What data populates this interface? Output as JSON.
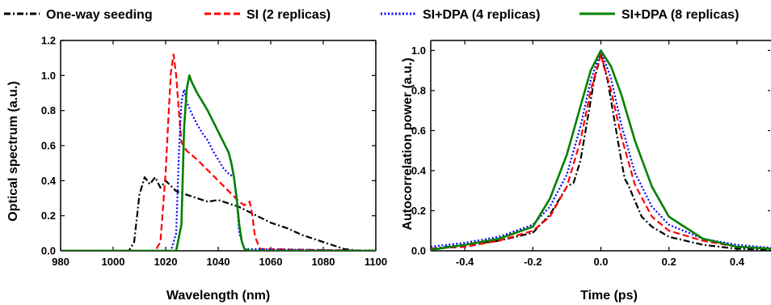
{
  "legend": [
    {
      "label": "One-way seeding",
      "color": "#000000",
      "dash": "dashdot"
    },
    {
      "label": "SI (2 replicas)",
      "color": "#ff0000",
      "dash": "dash"
    },
    {
      "label": "SI+DPA (4 replicas)",
      "color": "#0000ff",
      "dash": "dot"
    },
    {
      "label": "SI+DPA (8 replicas)",
      "color": "#008000",
      "dash": "solid"
    }
  ],
  "chart_data": [
    {
      "type": "line",
      "xlabel": "Wavelength (nm)",
      "ylabel": "Optical spectrum (a.u.)",
      "xlim": [
        980,
        1100
      ],
      "ylim": [
        0,
        1.2
      ],
      "xticks": [
        "980",
        "1000",
        "1020",
        "1040",
        "1060",
        "1080",
        "1100"
      ],
      "yticks": [
        "0.0",
        "0.2",
        "0.4",
        "0.6",
        "0.8",
        "1.0",
        "1.2"
      ],
      "series": [
        {
          "name": "One-way seeding",
          "color": "#000000",
          "dash": "dashdot",
          "x": [
            980,
            1006,
            1008,
            1010,
            1012,
            1014,
            1016,
            1018,
            1020,
            1024,
            1028,
            1032,
            1036,
            1040,
            1044,
            1048,
            1052,
            1056,
            1060,
            1066,
            1072,
            1078,
            1084,
            1088,
            1092,
            1100
          ],
          "y": [
            0,
            0,
            0.05,
            0.32,
            0.42,
            0.38,
            0.42,
            0.36,
            0.4,
            0.34,
            0.32,
            0.3,
            0.28,
            0.29,
            0.27,
            0.25,
            0.22,
            0.19,
            0.16,
            0.13,
            0.09,
            0.06,
            0.03,
            0.01,
            0.003,
            0
          ]
        },
        {
          "name": "SI (2 replicas)",
          "color": "#ff0000",
          "dash": "dash",
          "x": [
            980,
            1016,
            1018,
            1020,
            1021,
            1022,
            1023,
            1024,
            1025,
            1026,
            1028,
            1032,
            1036,
            1040,
            1044,
            1048,
            1050,
            1052,
            1053,
            1054,
            1056,
            1100
          ],
          "y": [
            0,
            0,
            0.05,
            0.45,
            0.75,
            1.02,
            1.12,
            1.0,
            0.8,
            0.62,
            0.57,
            0.52,
            0.46,
            0.4,
            0.34,
            0.28,
            0.26,
            0.28,
            0.2,
            0.08,
            0.01,
            0
          ]
        },
        {
          "name": "SI+DPA (4 replicas)",
          "color": "#0000ff",
          "dash": "dot",
          "x": [
            980,
            1022,
            1024,
            1025,
            1026,
            1027,
            1028,
            1030,
            1032,
            1034,
            1036,
            1038,
            1040,
            1042,
            1044,
            1046,
            1047,
            1048,
            1050,
            1100
          ],
          "y": [
            0,
            0,
            0.1,
            0.55,
            0.85,
            0.92,
            0.85,
            0.78,
            0.72,
            0.67,
            0.63,
            0.57,
            0.52,
            0.47,
            0.44,
            0.42,
            0.3,
            0.1,
            0.01,
            0
          ]
        },
        {
          "name": "SI+DPA (8 replicas)",
          "color": "#008000",
          "dash": "solid",
          "x": [
            980,
            1024,
            1026,
            1027,
            1028,
            1029,
            1030,
            1032,
            1034,
            1036,
            1038,
            1040,
            1042,
            1044,
            1045,
            1046,
            1047,
            1048,
            1049,
            1050,
            1052,
            1100
          ],
          "y": [
            0,
            0,
            0.15,
            0.7,
            0.92,
            1.0,
            0.96,
            0.9,
            0.85,
            0.8,
            0.74,
            0.68,
            0.62,
            0.56,
            0.5,
            0.42,
            0.3,
            0.15,
            0.05,
            0.01,
            0,
            0
          ]
        }
      ]
    },
    {
      "type": "line",
      "xlabel": "Time (ps)",
      "ylabel": "Autocorrelation power (a.u.)",
      "xlim": [
        -0.5,
        0.5
      ],
      "ylim": [
        0,
        1.05
      ],
      "xticks": [
        "-0.4",
        "-0.2",
        "0.0",
        "0.2",
        "0.4"
      ],
      "yticks": [
        "0.0",
        "0.2",
        "0.4",
        "0.6",
        "0.8",
        "1.0"
      ],
      "series": [
        {
          "name": "One-way seeding",
          "color": "#000000",
          "dash": "dashdot",
          "x": [
            -0.5,
            -0.4,
            -0.3,
            -0.2,
            -0.15,
            -0.1,
            -0.08,
            -0.06,
            -0.04,
            -0.02,
            0,
            0.02,
            0.04,
            0.06,
            0.07,
            0.08,
            0.1,
            0.12,
            0.15,
            0.2,
            0.3,
            0.4,
            0.5
          ],
          "y": [
            0.01,
            0.03,
            0.05,
            0.09,
            0.18,
            0.32,
            0.34,
            0.45,
            0.65,
            0.85,
            0.98,
            0.85,
            0.65,
            0.45,
            0.36,
            0.33,
            0.25,
            0.17,
            0.12,
            0.07,
            0.03,
            0.01,
            0.005
          ]
        },
        {
          "name": "SI (2 replicas)",
          "color": "#ff0000",
          "dash": "dash",
          "x": [
            -0.5,
            -0.4,
            -0.3,
            -0.2,
            -0.15,
            -0.1,
            -0.06,
            -0.03,
            0,
            0.03,
            0.06,
            0.1,
            0.15,
            0.2,
            0.3,
            0.4,
            0.5
          ],
          "y": [
            0.01,
            0.02,
            0.05,
            0.1,
            0.17,
            0.32,
            0.55,
            0.8,
            0.98,
            0.8,
            0.57,
            0.33,
            0.17,
            0.1,
            0.05,
            0.02,
            0.01
          ]
        },
        {
          "name": "SI+DPA (4 replicas)",
          "color": "#0000ff",
          "dash": "dot",
          "x": [
            -0.5,
            -0.4,
            -0.3,
            -0.2,
            -0.15,
            -0.1,
            -0.06,
            -0.03,
            0,
            0.03,
            0.06,
            0.1,
            0.15,
            0.2,
            0.3,
            0.4,
            0.5
          ],
          "y": [
            0.02,
            0.04,
            0.07,
            0.13,
            0.22,
            0.38,
            0.62,
            0.85,
            1.0,
            0.86,
            0.63,
            0.39,
            0.22,
            0.13,
            0.06,
            0.03,
            0.015
          ]
        },
        {
          "name": "SI+DPA (8 replicas)",
          "color": "#008000",
          "dash": "solid",
          "x": [
            -0.5,
            -0.4,
            -0.3,
            -0.2,
            -0.15,
            -0.1,
            -0.06,
            -0.03,
            0,
            0.03,
            0.06,
            0.1,
            0.15,
            0.2,
            0.3,
            0.4,
            0.5
          ],
          "y": [
            0.005,
            0.03,
            0.06,
            0.12,
            0.26,
            0.48,
            0.72,
            0.9,
            1.0,
            0.92,
            0.78,
            0.55,
            0.32,
            0.17,
            0.06,
            0.02,
            0.01
          ]
        }
      ]
    }
  ]
}
